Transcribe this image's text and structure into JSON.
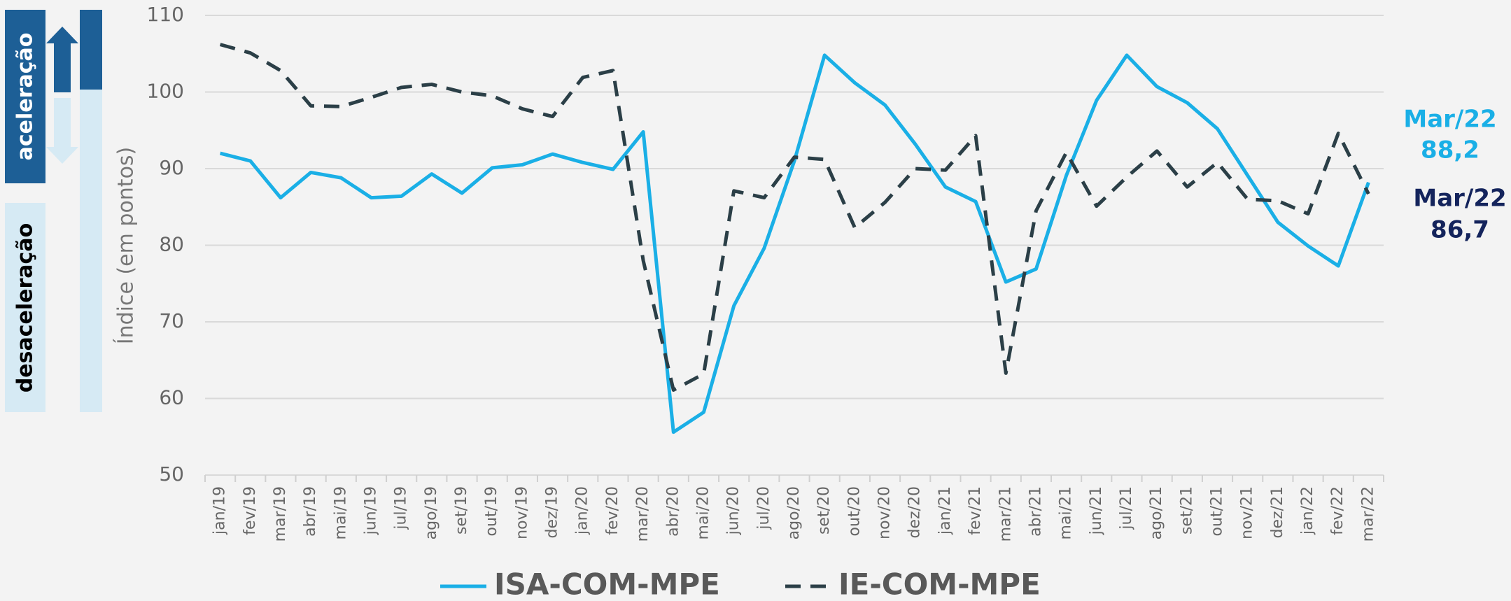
{
  "chart_data": {
    "type": "line",
    "y_label": "Índice (em pontos)",
    "side_labels": [
      "aceleração",
      "desaceleração"
    ],
    "categories": [
      "jan/19",
      "fev/19",
      "mar/19",
      "abr/19",
      "mai/19",
      "jun/19",
      "jul/19",
      "ago/19",
      "set/19",
      "out/19",
      "nov/19",
      "dez/19",
      "jan/20",
      "fev/20",
      "mar/20",
      "abr/20",
      "mai/20",
      "jun/20",
      "jul/20",
      "ago/20",
      "set/20",
      "out/20",
      "nov/20",
      "dez/20",
      "jan/21",
      "fev/21",
      "mar/21",
      "abr/21",
      "mai/21",
      "jun/21",
      "jul/21",
      "ago/21",
      "set/21",
      "out/21",
      "nov/21",
      "dez/21",
      "jan/22",
      "fev/22",
      "mar/22"
    ],
    "series": [
      {
        "name": "ISA-COM-MPE",
        "color": "#1aafe6",
        "dash": false,
        "values": [
          92,
          91,
          86.2,
          89.5,
          88.8,
          86.2,
          86.4,
          89.3,
          86.8,
          90.1,
          90.5,
          91.9,
          90.8,
          89.9,
          94.8,
          55.6,
          58.2,
          72.1,
          79.6,
          91,
          104.8,
          101.2,
          98.3,
          93.2,
          87.6,
          85.7,
          75.2,
          76.9,
          89.1,
          98.9,
          104.8,
          100.7,
          98.6,
          95.2,
          89.1,
          83,
          79.9,
          77.3,
          88.2
        ]
      },
      {
        "name": "IE-COM-MPE",
        "color": "#2b3f47",
        "dash": true,
        "values": [
          106.2,
          105.1,
          102.8,
          98.2,
          98.1,
          99.3,
          100.6,
          101,
          100,
          99.5,
          97.8,
          96.8,
          101.9,
          102.8,
          78,
          61.1,
          63.2,
          87.1,
          86.2,
          91.5,
          91.2,
          82.3,
          85.6,
          90,
          89.8,
          94.3,
          63.3,
          84.5,
          92.1,
          85.1,
          88.9,
          92.3,
          87.6,
          90.8,
          86,
          85.8,
          84.1,
          94.6,
          86.7
        ]
      }
    ],
    "annotations": [
      {
        "title": "Mar/22",
        "text": "88,2",
        "color": "#1aafe6"
      },
      {
        "title": "Mar/22",
        "text": "86,7",
        "color": "#14245c"
      }
    ],
    "ylim": [
      50,
      110
    ],
    "yticks": [
      50,
      60,
      70,
      80,
      90,
      100,
      110
    ],
    "grid": true
  }
}
